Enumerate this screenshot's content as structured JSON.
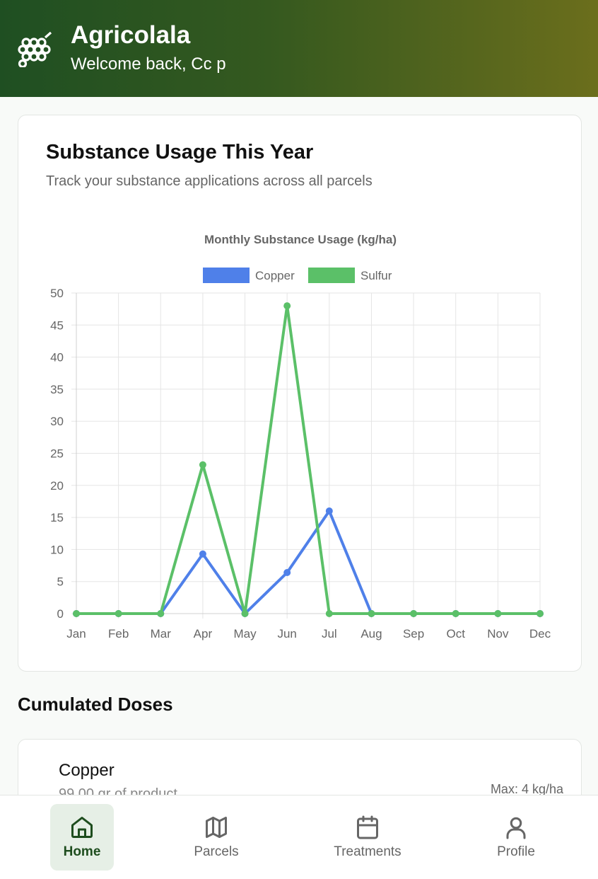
{
  "header": {
    "app_name": "Agricolala",
    "welcome": "Welcome back, Cc p"
  },
  "chart_card": {
    "title": "Substance Usage This Year",
    "subtitle": "Track your substance applications across all parcels"
  },
  "chart_data": {
    "type": "line",
    "title": "Monthly Substance Usage (kg/ha)",
    "categories": [
      "Jan",
      "Feb",
      "Mar",
      "Apr",
      "May",
      "Jun",
      "Jul",
      "Aug",
      "Sep",
      "Oct",
      "Nov",
      "Dec"
    ],
    "ylim": [
      0,
      50
    ],
    "yticks": [
      0,
      5,
      10,
      15,
      20,
      25,
      30,
      35,
      40,
      45,
      50
    ],
    "grid": true,
    "legend": "top",
    "series": [
      {
        "name": "Copper",
        "color": "#4f80e9",
        "values": [
          0,
          0,
          0,
          9.3,
          0,
          6.4,
          16,
          0,
          0,
          0,
          0,
          0
        ]
      },
      {
        "name": "Sulfur",
        "color": "#5bc068",
        "values": [
          0,
          0,
          0,
          23.2,
          0,
          48,
          0,
          0,
          0,
          0,
          0,
          0
        ]
      }
    ]
  },
  "cumulated": {
    "title": "Cumulated Doses",
    "items": [
      {
        "name": "Copper",
        "amount": "99.00 gr of product",
        "max": "Max: 4 kg/ha"
      }
    ]
  },
  "nav": {
    "items": [
      {
        "label": "Home",
        "icon": "home-icon",
        "active": true
      },
      {
        "label": "Parcels",
        "icon": "map-icon",
        "active": false
      },
      {
        "label": "Treatments",
        "icon": "calendar-icon",
        "active": false
      },
      {
        "label": "Profile",
        "icon": "user-icon",
        "active": false
      }
    ]
  }
}
